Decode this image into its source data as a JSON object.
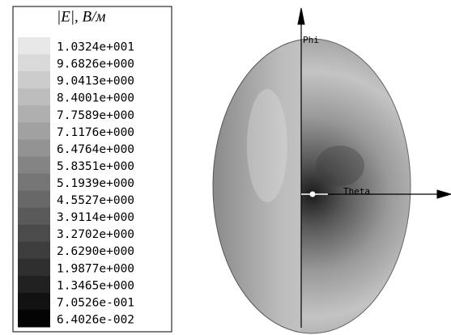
{
  "legend": {
    "title": "|E|, В/м",
    "labels": [
      "1.0324e+001",
      "9.6826e+000",
      "9.0413e+000",
      "8.4001e+000",
      "7.7589e+000",
      "7.1176e+000",
      "6.4764e+000",
      "5.8351e+000",
      "5.1939e+000",
      "4.5527e+000",
      "3.9114e+000",
      "3.2702e+000",
      "2.6290e+000",
      "1.9877e+000",
      "1.3465e+000",
      "7.0526e-001",
      "6.4026e-002"
    ]
  },
  "axes": {
    "vertical": "Phi",
    "horizontal": "Theta"
  }
}
